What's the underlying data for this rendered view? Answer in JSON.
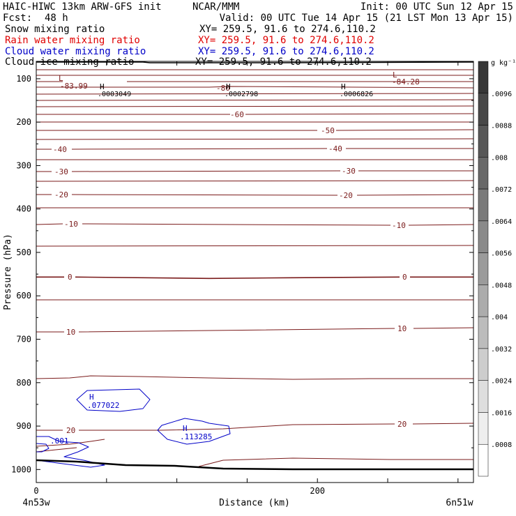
{
  "header": {
    "model": "HAIC-HIWC 13km ARW-GFS init",
    "org": "NCAR/MMM",
    "init": "Init: 00 UTC Sun 12 Apr 15",
    "fcst_label": "Fcst:",
    "fcst_value": "48 h",
    "valid": "Valid: 00 UTC Tue 14 Apr 15 (21 LST Mon 13 Apr 15)"
  },
  "fields": [
    {
      "name": "Snow mixing ratio",
      "xy": "XY= 259.5, 91.6 to 274.6,110.2",
      "color": "#000000"
    },
    {
      "name": "Rain water mixing ratio",
      "xy": "XY= 259.5, 91.6 to 274.6,110.2",
      "color": "#e00000"
    },
    {
      "name": "Cloud water mixing ratio",
      "xy": "XY= 259.5, 91.6 to 274.6,110.2",
      "color": "#0000c8"
    },
    {
      "name": "Cloud ice mixing ratio",
      "xy": "XY= 259.5, 91.6 to 274.6,110.2",
      "color": "#000000"
    }
  ],
  "chart_data": {
    "type": "contour-cross-section",
    "xlabel": "Distance (km)",
    "ylabel": "Pressure (hPa)",
    "xlim": [
      0,
      311
    ],
    "ylim": [
      1030,
      60
    ],
    "x_ticks": [
      0,
      200
    ],
    "x_minor_step": 50,
    "y_ticks": [
      100,
      200,
      300,
      400,
      500,
      600,
      700,
      800,
      900,
      1000
    ],
    "endpoint_left": "4n53w",
    "endpoint_right": "6n51w",
    "colors": {
      "temperature": "#7a1a1a",
      "cloud_water": "#0000c8",
      "terrain": "#000000"
    },
    "temperature_labels": [
      "-83.99",
      "-84.28",
      "-80",
      "-60",
      "-50",
      "-40",
      "-30",
      "-20",
      "-10",
      "0",
      "10",
      "20"
    ],
    "extrema": [
      {
        "type": "L",
        "value": "-83.99"
      },
      {
        "type": "L",
        "value": "-84.28"
      },
      {
        "type": "H",
        "value": ".0003049"
      },
      {
        "type": "H",
        "value": ".0002798"
      },
      {
        "type": "H",
        "value": ".0006826"
      },
      {
        "type": "H",
        "value": ".077022"
      },
      {
        "type": "H",
        "value": ".113285"
      }
    ],
    "cloud_water_labels": [
      ".001"
    ],
    "colorbar": {
      "unit": "g kg⁻¹",
      "ticks": [
        ".0096",
        ".0088",
        ".008",
        ".0072",
        ".0064",
        ".0056",
        ".0048",
        ".004",
        ".0032",
        ".0024",
        ".0016",
        ".0008"
      ]
    }
  }
}
